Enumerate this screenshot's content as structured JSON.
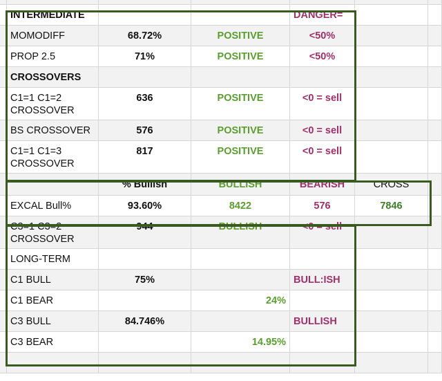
{
  "sheet": {
    "rows": [
      {
        "h": 8,
        "cells": {
          "c1": "",
          "c2": "",
          "c3": "",
          "c4": "",
          "c5": ""
        }
      },
      {
        "h": 30,
        "cells": {
          "c1": "INTERMEDIATE",
          "c4": "DANGER="
        }
      },
      {
        "h": 30,
        "cells": {
          "c1": "MOMODIFF",
          "c2": "68.72%",
          "c3": "POSITIVE",
          "c4": "<50%"
        }
      },
      {
        "h": 30,
        "cells": {
          "c1": "PROP 2.5",
          "c2": "71%",
          "c3": "POSITIVE",
          "c4": "<50%"
        }
      },
      {
        "h": 30,
        "cells": {
          "c1": "CROSSOVERS"
        }
      },
      {
        "h": 47,
        "cells": {
          "c1": "C1=1 C1=2 CROSSOVER",
          "c2": "636",
          "c3": "POSITIVE",
          "c4": "<0 = sell"
        }
      },
      {
        "h": 30,
        "cells": {
          "c1": "BS CROSSOVER",
          "c2": "576",
          "c3": "POSITIVE",
          "c4": "<0 = sell"
        }
      },
      {
        "h": 47,
        "cells": {
          "c1": "C1=1 C1=3 CROSSOVER",
          "c2": "817",
          "c3": "POSITIVE",
          "c4": "<0 = sell"
        }
      },
      {
        "h": 32,
        "cells": {
          "c2": "% Bullish",
          "c3": "BULLISH",
          "c4": "BEARISH",
          "c5": "CROSS"
        }
      },
      {
        "h": 30,
        "cells": {
          "c1": "EXCAL Bull%",
          "c2": "93.60%",
          "c3": "8422",
          "c4": "576",
          "c5": "7846"
        }
      },
      {
        "h": 47,
        "cells": {
          "c1": "C3=1 C3=2 CROSSOVER",
          "c2": "944",
          "c3": "BULLISH",
          "c4": "<0 = sell"
        }
      },
      {
        "h": 30,
        "cells": {
          "c1": "LONG-TERM"
        }
      },
      {
        "h": 30,
        "cells": {
          "c1": "C1 BULL",
          "c2": "75%",
          "c4": "BULL:ISH"
        }
      },
      {
        "h": 30,
        "cells": {
          "c1": "C1 BEAR",
          "c3": "24%"
        }
      },
      {
        "h": 30,
        "cells": {
          "c1": "C3 BULL",
          "c2": "84.746%",
          "c4": "BULLISH"
        }
      },
      {
        "h": 30,
        "cells": {
          "c1": "C3 BEAR",
          "c3": "14.95%"
        }
      },
      {
        "h": 30,
        "cells": {}
      }
    ]
  },
  "colors": {
    "frame": "#3a5a22",
    "green": "#5b9e2f",
    "purple": "#a0306a",
    "gridline": "#d6d6d6",
    "stripe": "#f2f2f2"
  }
}
